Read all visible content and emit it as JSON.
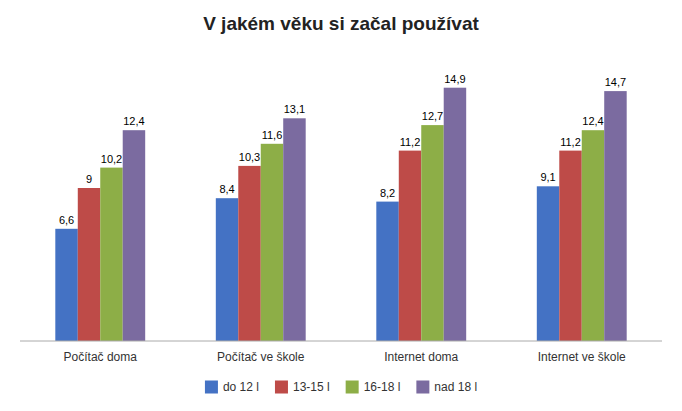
{
  "chart_data": {
    "type": "bar",
    "title": "V jakém věku si začal používat",
    "categories": [
      "Počítač doma",
      "Počítač ve škole",
      "Internet doma",
      "Internet ve škole"
    ],
    "series": [
      {
        "name": "do 12 l",
        "color": "#4472C4",
        "values": [
          6.6,
          8.4,
          8.2,
          9.1
        ],
        "value_labels": [
          "6,6",
          "8,4",
          "8,2",
          "9,1"
        ]
      },
      {
        "name": "13-15 l",
        "color": "#BE4B48",
        "values": [
          9.0,
          10.3,
          11.2,
          11.2
        ],
        "value_labels": [
          "9",
          "10,3",
          "11,2",
          "11,2"
        ]
      },
      {
        "name": "16-18 l",
        "color": "#8DAE47",
        "values": [
          10.2,
          11.6,
          12.7,
          12.4
        ],
        "value_labels": [
          "10,2",
          "11,6",
          "12,7",
          "12,4"
        ]
      },
      {
        "name": "nad 18 l",
        "color": "#7B6BA0",
        "values": [
          12.4,
          13.1,
          14.9,
          14.7
        ],
        "value_labels": [
          "12,4",
          "13,1",
          "14,9",
          "14,7"
        ]
      }
    ],
    "ylim": [
      0,
      17
    ],
    "grid": false,
    "legend": "bottom",
    "data_labels": true,
    "tick_labels": "x"
  }
}
